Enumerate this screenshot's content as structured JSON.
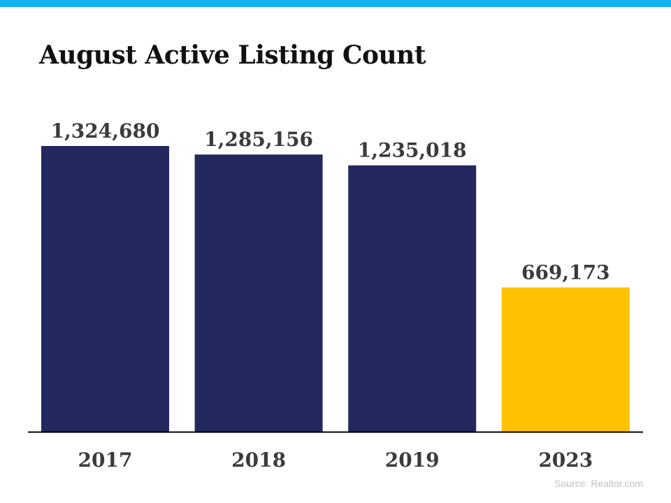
{
  "colors": {
    "top_bar": "#12b3f0",
    "bar_default": "#23295e",
    "bar_highlight": "#ffc200",
    "axis": "#000000"
  },
  "chart_data": {
    "type": "bar",
    "title": "August Active Listing Count",
    "categories": [
      "2017",
      "2018",
      "2019",
      "2023"
    ],
    "values": [
      1324680,
      1285156,
      1235018,
      669173
    ],
    "value_labels": [
      "1,324,680",
      "1,285,156",
      "1,235,018",
      "669,173"
    ],
    "highlight_index": 3,
    "ylim": [
      0,
      1400000
    ],
    "grid": false,
    "legend": "none"
  },
  "source": "Source: Realtor.com"
}
